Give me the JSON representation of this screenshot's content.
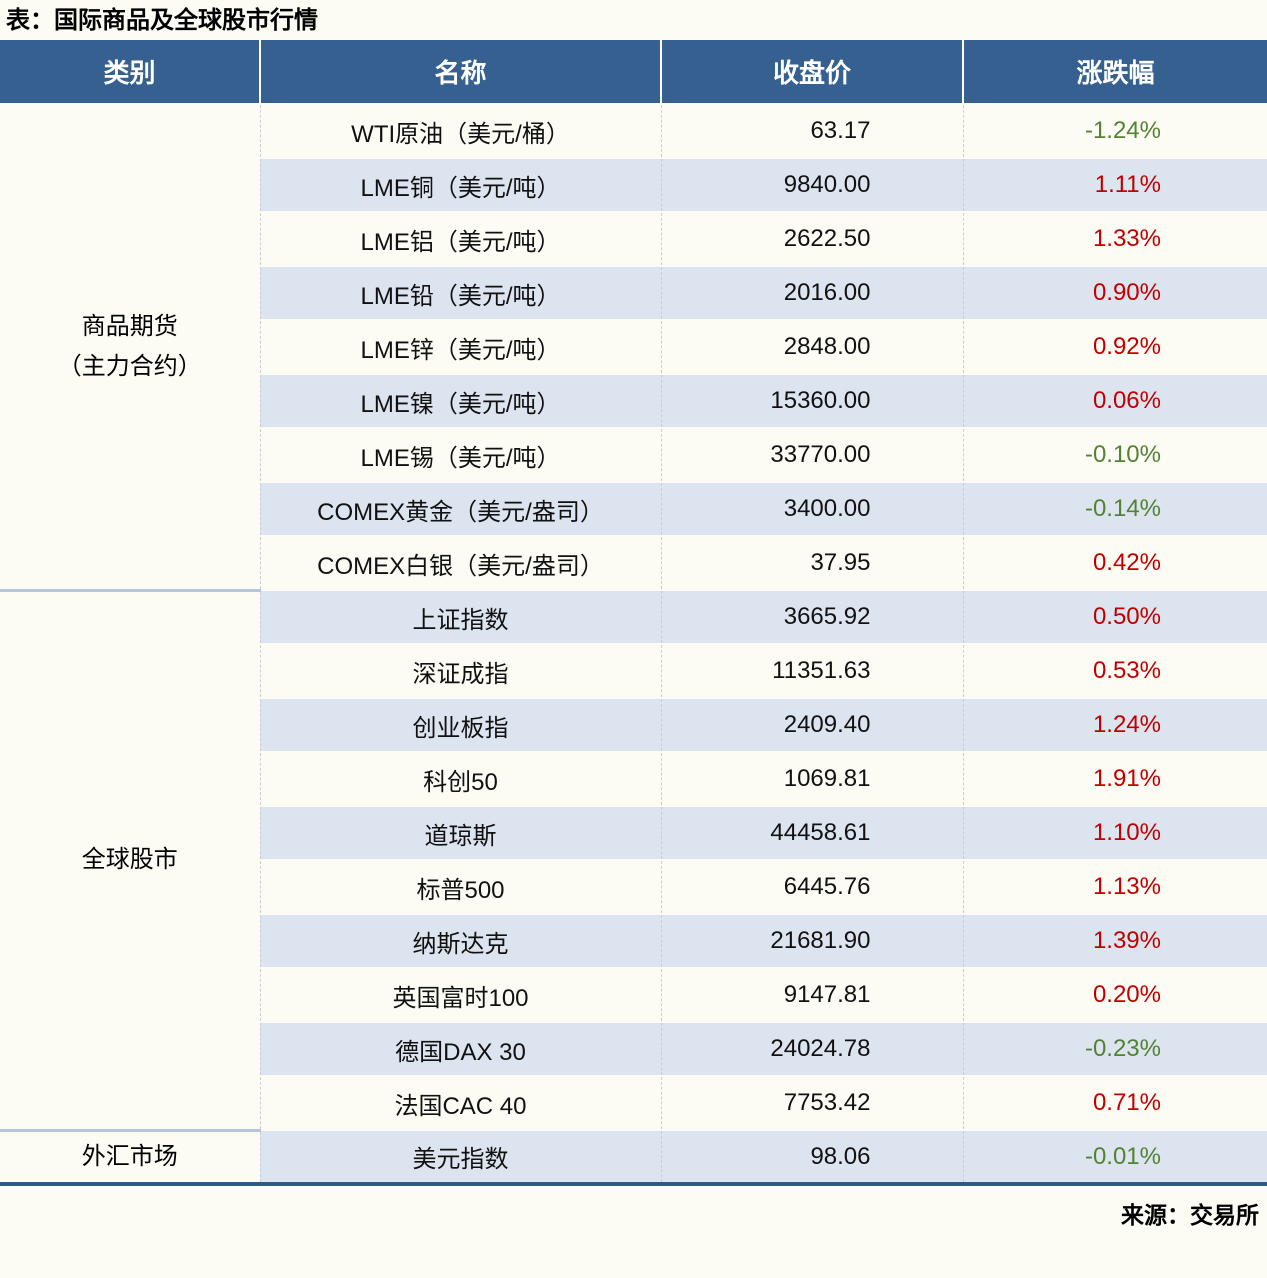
{
  "title": "表：国际商品及全球股市行情",
  "source": "来源：交易所",
  "colors": {
    "header_bg": "#35608F",
    "band_blue": "#DCE4EF",
    "page_bg": "#FCFCF4",
    "gain_red": "#C00000",
    "decline_green": "#548235",
    "section_divider": "#B5C6DC",
    "table_bottom_border": "#2E5A8B"
  },
  "table": {
    "headers": [
      "类别",
      "名称",
      "收盘价",
      "涨跌幅"
    ],
    "categories": [
      {
        "line1": "商品期货",
        "line2": "（主力合约）",
        "rowspan": 9
      },
      {
        "line1": "全球股市",
        "line2": "",
        "rowspan": 10
      },
      {
        "line1": "外汇市场",
        "line2": "",
        "rowspan": 1
      }
    ],
    "rows": [
      {
        "name": "WTI原油（美元/桶）",
        "close": "63.17",
        "change": "-1.24%",
        "direction": "down"
      },
      {
        "name": "LME铜（美元/吨）",
        "close": "9840.00",
        "change": "1.11%",
        "direction": "up"
      },
      {
        "name": "LME铝（美元/吨）",
        "close": "2622.50",
        "change": "1.33%",
        "direction": "up"
      },
      {
        "name": "LME铅（美元/吨）",
        "close": "2016.00",
        "change": "0.90%",
        "direction": "up"
      },
      {
        "name": "LME锌（美元/吨）",
        "close": "2848.00",
        "change": "0.92%",
        "direction": "up"
      },
      {
        "name": "LME镍（美元/吨）",
        "close": "15360.00",
        "change": "0.06%",
        "direction": "up"
      },
      {
        "name": "LME锡（美元/吨）",
        "close": "33770.00",
        "change": "-0.10%",
        "direction": "down"
      },
      {
        "name": "COMEX黄金（美元/盎司）",
        "close": "3400.00",
        "change": "-0.14%",
        "direction": "down"
      },
      {
        "name": "COMEX白银（美元/盎司）",
        "close": "37.95",
        "change": "0.42%",
        "direction": "up"
      },
      {
        "name": "上证指数",
        "close": "3665.92",
        "change": "0.50%",
        "direction": "up"
      },
      {
        "name": "深证成指",
        "close": "11351.63",
        "change": "0.53%",
        "direction": "up"
      },
      {
        "name": "创业板指",
        "close": "2409.40",
        "change": "1.24%",
        "direction": "up"
      },
      {
        "name": "科创50",
        "close": "1069.81",
        "change": "1.91%",
        "direction": "up"
      },
      {
        "name": "道琼斯",
        "close": "44458.61",
        "change": "1.10%",
        "direction": "up"
      },
      {
        "name": "标普500",
        "close": "6445.76",
        "change": "1.13%",
        "direction": "up"
      },
      {
        "name": "纳斯达克",
        "close": "21681.90",
        "change": "1.39%",
        "direction": "up"
      },
      {
        "name": "英国富时100",
        "close": "9147.81",
        "change": "0.20%",
        "direction": "up"
      },
      {
        "name": "德国DAX 30",
        "close": "24024.78",
        "change": "-0.23%",
        "direction": "down"
      },
      {
        "name": "法国CAC 40",
        "close": "7753.42",
        "change": "0.71%",
        "direction": "up"
      },
      {
        "name": "美元指数",
        "close": "98.06",
        "change": "-0.01%",
        "direction": "down"
      }
    ]
  },
  "chart_data": {
    "type": "table",
    "title": "表：国际商品及全球股市行情",
    "columns": [
      "类别",
      "名称",
      "收盘价",
      "涨跌幅"
    ],
    "rows": [
      [
        "商品期货（主力合约）",
        "WTI原油（美元/桶）",
        63.17,
        "-1.24%"
      ],
      [
        "商品期货（主力合约）",
        "LME铜（美元/吨）",
        9840.0,
        "1.11%"
      ],
      [
        "商品期货（主力合约）",
        "LME铝（美元/吨）",
        2622.5,
        "1.33%"
      ],
      [
        "商品期货（主力合约）",
        "LME铅（美元/吨）",
        2016.0,
        "0.90%"
      ],
      [
        "商品期货（主力合约）",
        "LME锌（美元/吨）",
        2848.0,
        "0.92%"
      ],
      [
        "商品期货（主力合约）",
        "LME镍（美元/吨）",
        15360.0,
        "0.06%"
      ],
      [
        "商品期货（主力合约）",
        "LME锡（美元/吨）",
        33770.0,
        "-0.10%"
      ],
      [
        "商品期货（主力合约）",
        "COMEX黄金（美元/盎司）",
        3400.0,
        "-0.14%"
      ],
      [
        "商品期货（主力合约）",
        "COMEX白银（美元/盎司）",
        37.95,
        "0.42%"
      ],
      [
        "全球股市",
        "上证指数",
        3665.92,
        "0.50%"
      ],
      [
        "全球股市",
        "深证成指",
        11351.63,
        "0.53%"
      ],
      [
        "全球股市",
        "创业板指",
        2409.4,
        "1.24%"
      ],
      [
        "全球股市",
        "科创50",
        1069.81,
        "1.91%"
      ],
      [
        "全球股市",
        "道琼斯",
        44458.61,
        "1.10%"
      ],
      [
        "全球股市",
        "标普500",
        6445.76,
        "1.13%"
      ],
      [
        "全球股市",
        "纳斯达克",
        21681.9,
        "1.39%"
      ],
      [
        "全球股市",
        "英国富时100",
        9147.81,
        "0.20%"
      ],
      [
        "全球股市",
        "德国DAX 30",
        24024.78,
        "-0.23%"
      ],
      [
        "全球股市",
        "法国CAC 40",
        7753.42,
        "0.71%"
      ],
      [
        "外汇市场",
        "美元指数",
        98.06,
        "-0.01%"
      ]
    ],
    "source": "来源：交易所"
  }
}
